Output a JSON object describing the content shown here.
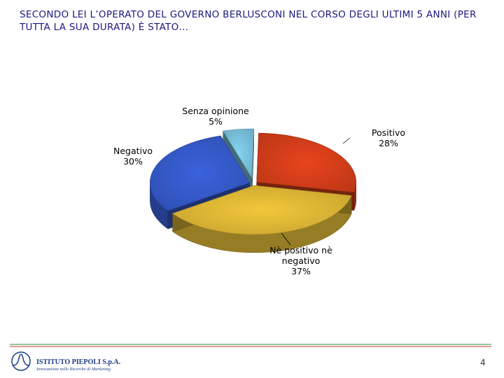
{
  "chart_data": {
    "type": "pie",
    "title": "SECONDO LEI L’OPERATO DEL GOVERNO BERLUSCONI NEL CORSO DEGLI ULTIMI 5 ANNI (PER TUTTA LA SUA DURATA) È STATO…",
    "categories": [
      "Positivo",
      "Nè positivo nè negativo",
      "Negativo",
      "Senza opinione"
    ],
    "values": [
      28,
      37,
      30,
      5
    ],
    "value_labels": [
      "28%",
      "37%",
      "30%",
      "5%"
    ],
    "colors": [
      "#e8441c",
      "#f2c83a",
      "#3a62dc",
      "#86d4f2"
    ]
  },
  "footer": {
    "company": "ISTITUTO PIEPOLI S.p.A.",
    "tagline": "Innovazione nelle Ricerche di Marketing",
    "page": "4"
  }
}
